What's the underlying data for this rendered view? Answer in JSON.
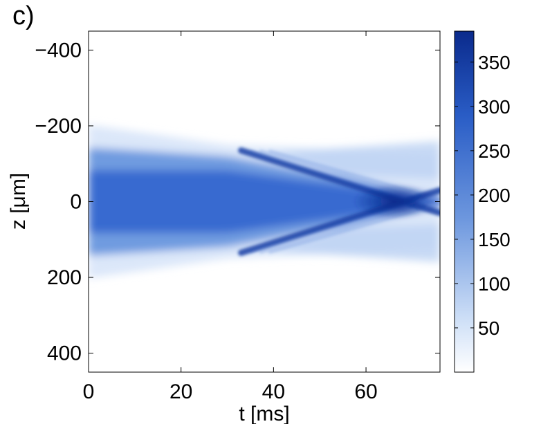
{
  "panel_label": "c)",
  "chart_data": {
    "type": "heatmap",
    "xlabel": "t [ms]",
    "ylabel": "z [μm]",
    "xlim": [
      0,
      76
    ],
    "ylim": [
      -450,
      450
    ],
    "y_reversed": true,
    "x_ticks": [
      0,
      20,
      40,
      60
    ],
    "x_tick_labels": [
      "0",
      "20",
      "40",
      "60"
    ],
    "y_ticks": [
      -400,
      -200,
      0,
      200,
      400
    ],
    "y_tick_labels": [
      "−400",
      "−200",
      "0",
      "200",
      "400"
    ],
    "colorbar": {
      "range": [
        0,
        385
      ],
      "ticks": [
        50,
        100,
        150,
        200,
        250,
        300,
        350
      ],
      "tick_labels": [
        "50",
        "100",
        "150",
        "200",
        "250",
        "300",
        "350"
      ],
      "color_low": "#ffffff",
      "color_high": "#0a2a8c"
    },
    "features": [
      {
        "name": "central-cloud",
        "t_range": [
          0,
          30
        ],
        "half_width_um": 150,
        "level": 200
      },
      {
        "name": "upper-branch",
        "from": [
          33,
          -135
        ],
        "to": [
          76,
          30
        ],
        "level": 320
      },
      {
        "name": "lower-branch",
        "from": [
          33,
          135
        ],
        "to": [
          76,
          -30
        ],
        "level": 320
      },
      {
        "name": "crossing-point",
        "t": 66,
        "z": 0,
        "level": 385
      }
    ],
    "grid": false
  }
}
